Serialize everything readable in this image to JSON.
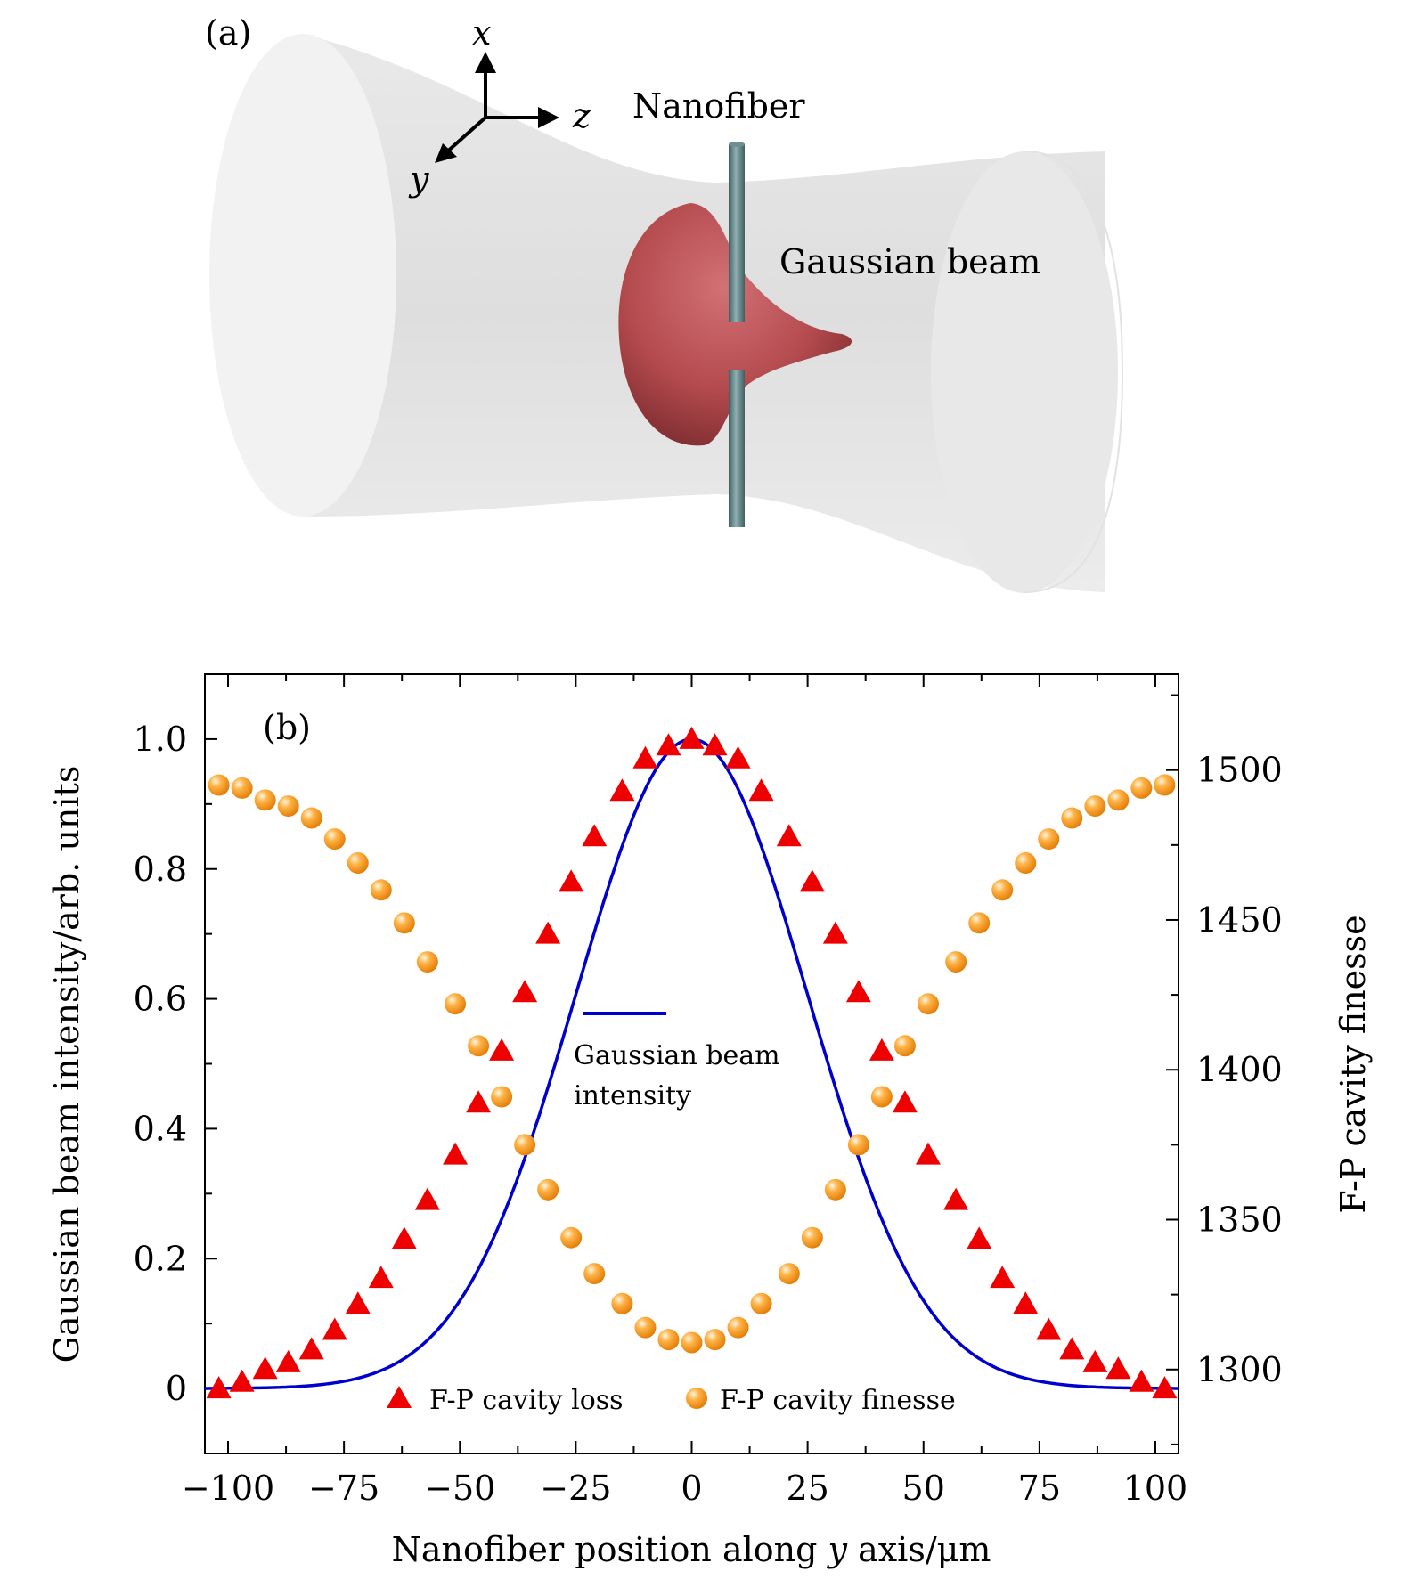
{
  "panel_a": {
    "label": "(a)",
    "axis_x": "x",
    "axis_y": "y",
    "axis_z": "z",
    "nanofiber_label": "Nanofiber",
    "beam_label": "Gaussian beam",
    "colors": {
      "beam": "#ebebeb",
      "lobe": "#b34a4e",
      "fiber": "#5d7f82"
    }
  },
  "chart_data": {
    "type": "line",
    "panel_label": "(b)",
    "xlabel_prefix": "Nanofiber position along ",
    "xlabel_var": "y",
    "xlabel_suffix": " axis/μm",
    "ylabel": "Gaussian beam intensity/arb. units",
    "y2label": "F-P cavity finesse",
    "xlim": [
      -105,
      105
    ],
    "ylim": [
      -0.1,
      1.1
    ],
    "y2lim": [
      1272,
      1532
    ],
    "xticks": [
      -100,
      -75,
      -50,
      -25,
      0,
      25,
      50,
      75,
      100
    ],
    "xtick_labels": [
      "−100",
      "−75",
      "−50",
      "−25",
      "0",
      "25",
      "50",
      "75",
      "100"
    ],
    "yticks": [
      0,
      0.2,
      0.4,
      0.6,
      0.8,
      1.0
    ],
    "ytick_labels": [
      "0",
      "0.2",
      "0.4",
      "0.6",
      "0.8",
      "1.0"
    ],
    "y2ticks": [
      1300,
      1350,
      1400,
      1450,
      1500
    ],
    "y2tick_labels": [
      "1300",
      "1350",
      "1400",
      "1450",
      "1500"
    ],
    "gaussian_waist_um": 50,
    "colors": {
      "gaussian": "#0000cc",
      "loss": "#ee0000",
      "finesse": "#ff9a1f"
    },
    "series": [
      {
        "name": "Gaussian beam intensity",
        "label_lines": [
          "Gaussian beam",
          "intensity"
        ],
        "kind": "line",
        "x_range": [
          -105,
          105
        ]
      },
      {
        "name": "F-P cavity loss",
        "kind": "triangle",
        "axis": "left",
        "x": [
          -102,
          -97,
          -92,
          -87,
          -82,
          -77,
          -72,
          -67,
          -62,
          -57,
          -51,
          -46,
          -41,
          -36,
          -31,
          -26,
          -21,
          -15,
          -10,
          -5,
          0,
          5,
          10,
          15,
          21,
          26,
          31,
          36,
          41,
          46,
          51,
          57,
          62,
          67,
          72,
          77,
          82,
          87,
          92,
          97,
          102
        ],
        "values": [
          0.0,
          0.01,
          0.03,
          0.04,
          0.06,
          0.09,
          0.13,
          0.17,
          0.23,
          0.29,
          0.36,
          0.44,
          0.52,
          0.61,
          0.7,
          0.78,
          0.85,
          0.92,
          0.97,
          0.99,
          1.0,
          0.99,
          0.97,
          0.92,
          0.85,
          0.78,
          0.7,
          0.61,
          0.52,
          0.44,
          0.36,
          0.29,
          0.23,
          0.17,
          0.13,
          0.09,
          0.06,
          0.04,
          0.03,
          0.01,
          0.0
        ]
      },
      {
        "name": "F-P cavity finesse",
        "kind": "sphere",
        "axis": "right",
        "x": [
          -102,
          -97,
          -92,
          -87,
          -82,
          -77,
          -72,
          -67,
          -62,
          -57,
          -51,
          -46,
          -41,
          -36,
          -31,
          -26,
          -21,
          -15,
          -10,
          -5,
          0,
          5,
          10,
          15,
          21,
          26,
          31,
          36,
          41,
          46,
          51,
          57,
          62,
          67,
          72,
          77,
          82,
          87,
          92,
          97,
          102
        ],
        "values": [
          1495,
          1494,
          1490,
          1488,
          1484,
          1477,
          1469,
          1460,
          1449,
          1436,
          1422,
          1408,
          1391,
          1375,
          1360,
          1344,
          1332,
          1322,
          1314,
          1310,
          1309,
          1310,
          1314,
          1322,
          1332,
          1344,
          1360,
          1375,
          1391,
          1408,
          1422,
          1436,
          1449,
          1460,
          1469,
          1477,
          1484,
          1488,
          1490,
          1494,
          1495
        ]
      }
    ]
  }
}
